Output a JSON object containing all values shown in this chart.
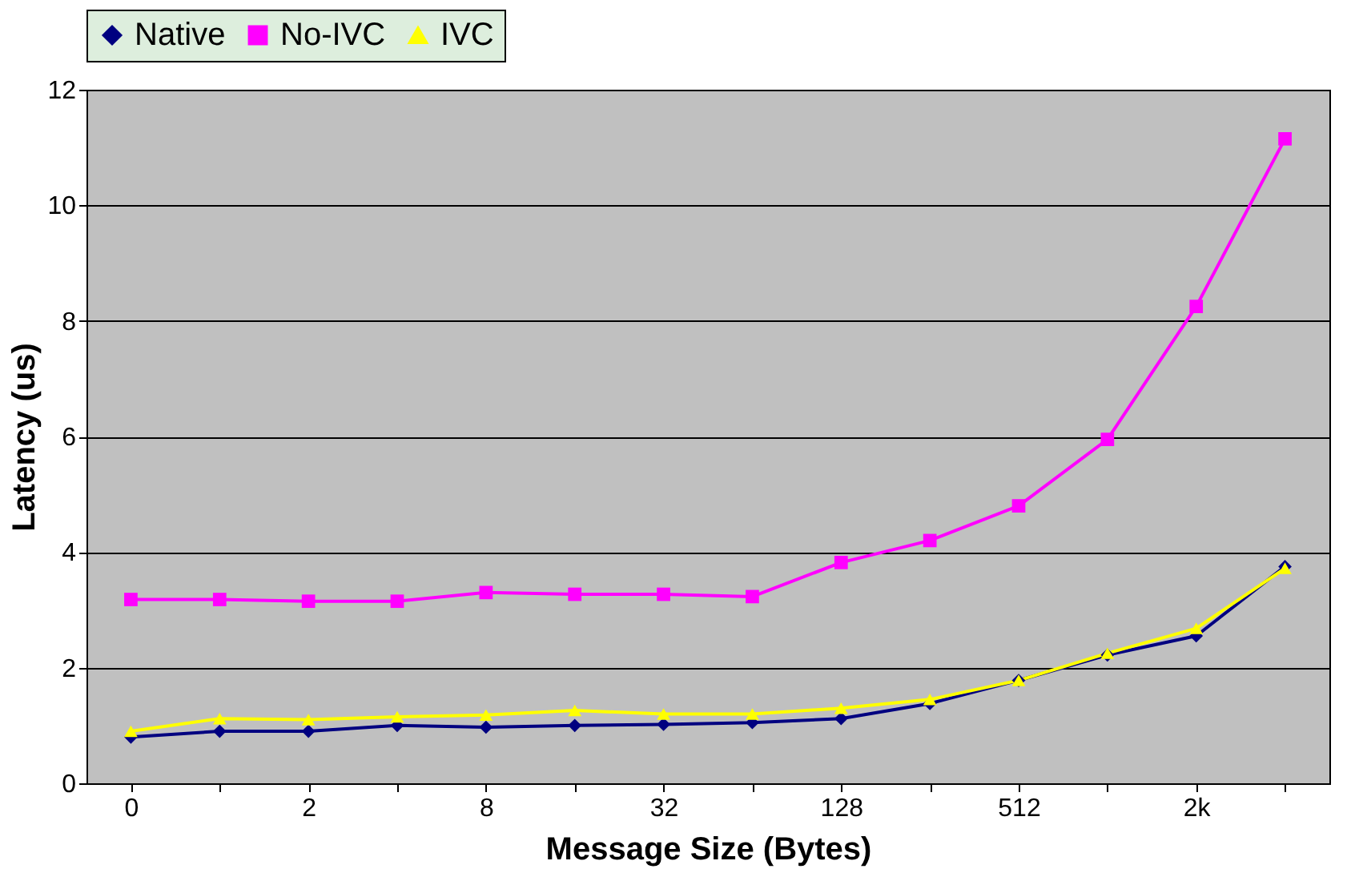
{
  "chart_data": {
    "type": "line",
    "xlabel": "Message Size (Bytes)",
    "ylabel": "Latency (us)",
    "categories": [
      "0",
      null,
      "2",
      null,
      "8",
      null,
      "32",
      null,
      "128",
      null,
      "512",
      null,
      "2k",
      null
    ],
    "series": [
      {
        "name": "Native",
        "color": "#000080",
        "marker": "diamond",
        "values": [
          0.8,
          0.9,
          0.9,
          1.0,
          0.97,
          1.0,
          1.02,
          1.05,
          1.12,
          1.38,
          1.78,
          2.22,
          2.55,
          3.75
        ]
      },
      {
        "name": "No-IVC",
        "color": "#ff00ff",
        "marker": "square",
        "values": [
          3.18,
          3.18,
          3.15,
          3.15,
          3.3,
          3.27,
          3.27,
          3.23,
          3.82,
          4.2,
          4.8,
          5.95,
          8.25,
          11.15
        ]
      },
      {
        "name": "IVC",
        "color": "#ffff00",
        "marker": "triangle",
        "values": [
          0.9,
          1.12,
          1.1,
          1.15,
          1.18,
          1.26,
          1.2,
          1.2,
          1.3,
          1.45,
          1.78,
          2.25,
          2.68,
          3.72
        ]
      }
    ],
    "ylim": [
      0,
      12
    ],
    "yticks": [
      0,
      2,
      4,
      6,
      8,
      10,
      12
    ],
    "grid": "y",
    "legend": "top",
    "line_style": "solid"
  }
}
